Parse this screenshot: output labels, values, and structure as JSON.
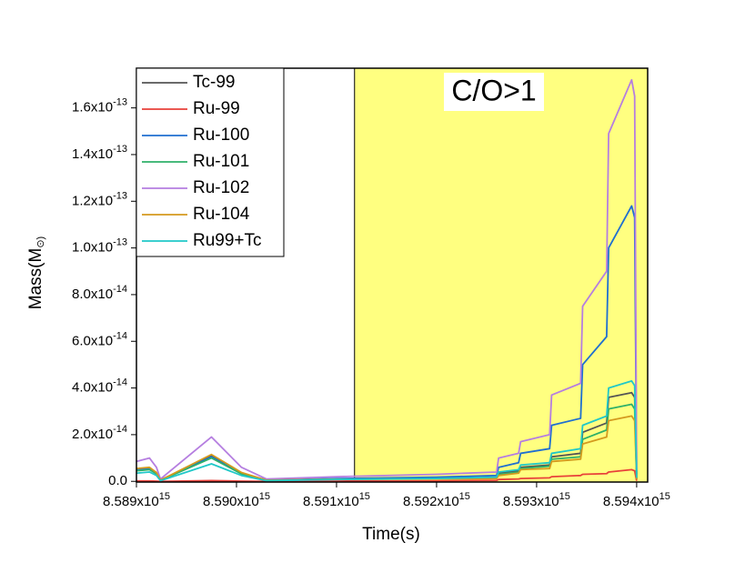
{
  "chart_data": {
    "type": "line",
    "xlabel": "Time(s)",
    "ylabel": "Mass(M_⊙)",
    "annotation": "C/O>1",
    "shaded_region": {
      "x_start": 8591180000000000.0,
      "color": "#ffff80"
    },
    "legend": "upper left",
    "xlim": [
      8589000000000000.0,
      8594110000000000.0
    ],
    "ylim": [
      -3e-16,
      1.77e-13
    ],
    "xticks": [
      {
        "value": 8589000000000000.0,
        "label": "8.589x10^15"
      },
      {
        "value": 8590000000000000.0,
        "label": "8.590x10^15"
      },
      {
        "value": 8591000000000000.0,
        "label": "8.591x10^15"
      },
      {
        "value": 8592000000000000.0,
        "label": "8.592x10^15"
      },
      {
        "value": 8593000000000000.0,
        "label": "8.593x10^15"
      },
      {
        "value": 8594000000000000.0,
        "label": "8.594x10^15"
      }
    ],
    "yticks": [
      {
        "value": 0,
        "label": "0.0"
      },
      {
        "value": 2e-14,
        "label": "2.0x10^-14"
      },
      {
        "value": 4e-14,
        "label": "4.0x10^-14"
      },
      {
        "value": 6e-14,
        "label": "6.0x10^-14"
      },
      {
        "value": 8e-14,
        "label": "8.0x10^-14"
      },
      {
        "value": 1e-13,
        "label": "1.0x10^-13"
      },
      {
        "value": 1.2e-13,
        "label": "1.2x10^-13"
      },
      {
        "value": 1.4e-13,
        "label": "1.4x10^-13"
      },
      {
        "value": 1.6e-13,
        "label": "1.6x10^-13"
      }
    ],
    "x": [
      8589000000000000.0,
      8589130000000000.0,
      8589200000000000.0,
      8589240000000000.0,
      8589750000000000.0,
      8590050000000000.0,
      8590300000000000.0,
      8591000000000000.0,
      8592000000000000.0,
      8592600000000000.0,
      8592620000000000.0,
      8592820000000000.0,
      8592840000000000.0,
      8593130000000000.0,
      8593150000000000.0,
      8593440000000000.0,
      8593460000000000.0,
      8593700000000000.0,
      8593720000000000.0,
      8593950000000000.0,
      8593980000000000.0,
      8594000000000000.0
    ],
    "series": [
      {
        "name": "Tc-99",
        "color": "#555555",
        "values": [
          5e-15,
          5.5e-15,
          3.5e-15,
          5e-16,
          1.1e-14,
          3.5e-15,
          5e-16,
          1e-15,
          1.2e-15,
          1.6e-15,
          3.5e-15,
          4.5e-15,
          6e-15,
          7e-15,
          1.05e-14,
          1.2e-14,
          2.1e-14,
          2.5e-14,
          3.6e-14,
          3.8e-14,
          3.6e-14,
          1e-15
        ]
      },
      {
        "name": "Ru-99",
        "color": "#e8413a",
        "values": [
          2e-16,
          2e-16,
          1e-16,
          0,
          3e-16,
          1e-16,
          0,
          1e-16,
          2e-16,
          4e-16,
          8e-16,
          1e-15,
          1.2e-15,
          1.5e-15,
          2e-15,
          2.5e-15,
          3e-15,
          3.3e-15,
          4e-15,
          5e-15,
          4.5e-15,
          2e-16
        ]
      },
      {
        "name": "Ru-100",
        "color": "#1f6fd0",
        "values": [
          5e-15,
          5.5e-15,
          3.5e-15,
          5e-16,
          1.05e-14,
          3.5e-15,
          5e-16,
          1.2e-15,
          1.8e-15,
          2.5e-15,
          6e-15,
          8e-15,
          1.2e-14,
          1.4e-14,
          2.4e-14,
          2.7e-14,
          5e-14,
          6.2e-14,
          1e-13,
          1.18e-13,
          1.13e-13,
          3e-15
        ]
      },
      {
        "name": "Ru-101",
        "color": "#2fb069",
        "values": [
          4.5e-15,
          5e-15,
          3.2e-15,
          4e-16,
          1e-14,
          3.2e-15,
          4e-16,
          9e-16,
          1.1e-15,
          1.4e-15,
          3e-15,
          4e-15,
          5.5e-15,
          6.5e-15,
          9.5e-15,
          1.05e-14,
          1.8e-14,
          2.2e-14,
          3.1e-14,
          3.3e-14,
          3.1e-14,
          1e-15
        ]
      },
      {
        "name": "Ru-102",
        "color": "#b57ee0",
        "values": [
          8.5e-15,
          1e-14,
          6e-15,
          1e-15,
          1.9e-14,
          6e-15,
          1e-15,
          2e-15,
          3e-15,
          4e-15,
          1e-14,
          1.2e-14,
          1.7e-14,
          2e-14,
          3.7e-14,
          4.2e-14,
          7.5e-14,
          9e-14,
          1.49e-13,
          1.72e-13,
          1.65e-13,
          5e-15
        ]
      },
      {
        "name": "Ru-104",
        "color": "#d49a1e",
        "values": [
          5.5e-15,
          6e-15,
          3.8e-15,
          5e-16,
          1.15e-14,
          3.8e-15,
          5e-16,
          9e-16,
          1e-15,
          1.2e-15,
          2.5e-15,
          3.5e-15,
          5e-15,
          5.5e-15,
          8.5e-15,
          9.5e-15,
          1.6e-14,
          1.9e-14,
          2.6e-14,
          2.8e-14,
          2.6e-14,
          1e-15
        ]
      },
      {
        "name": "Ru99+Tc",
        "color": "#20c8c8",
        "values": [
          3.5e-15,
          4e-15,
          2.5e-15,
          3e-16,
          7.5e-15,
          2.5e-15,
          3e-16,
          8e-16,
          1.2e-15,
          1.8e-15,
          4e-15,
          5e-15,
          7e-15,
          8e-15,
          1.2e-14,
          1.4e-14,
          2.4e-14,
          2.8e-14,
          4e-14,
          4.3e-14,
          4.1e-14,
          1.5e-15
        ]
      }
    ]
  }
}
